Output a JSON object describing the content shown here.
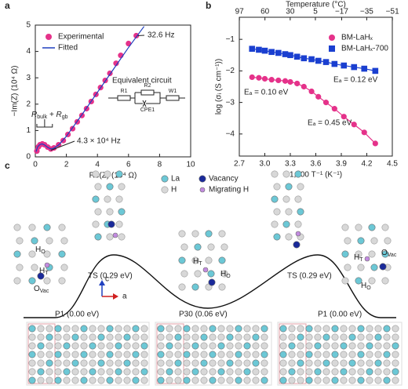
{
  "panel_labels": [
    "a",
    "b",
    "c"
  ],
  "chart_data": [
    {
      "type": "scatter",
      "xlabel": "Re(Z) (10⁴ Ω)",
      "ylabel": "−Im(Z) (10⁴ Ω)",
      "xlim": [
        0,
        10
      ],
      "ylim": [
        0,
        5
      ],
      "xticks": [
        0,
        2,
        4,
        6,
        8,
        10
      ],
      "yticks": [
        0,
        1,
        2,
        3,
        4,
        5
      ],
      "legend": "upper left",
      "series": [
        {
          "name": "Experimental",
          "color": "#e5328a",
          "marker": "circle",
          "x": [
            0.1,
            0.2,
            0.3,
            0.45,
            0.6,
            0.8,
            1.0,
            1.2,
            1.5,
            1.8,
            2.1,
            2.4,
            2.7,
            3.0,
            3.3,
            3.6,
            3.9,
            4.2,
            4.5,
            4.8,
            5.2,
            5.5,
            6.0,
            6.5
          ],
          "values": [
            0.22,
            0.38,
            0.46,
            0.49,
            0.46,
            0.37,
            0.3,
            0.34,
            0.46,
            0.62,
            0.85,
            1.07,
            1.33,
            1.57,
            1.83,
            2.1,
            2.37,
            2.63,
            2.9,
            3.17,
            3.55,
            3.85,
            4.3,
            4.6
          ]
        },
        {
          "name": "Fitted",
          "color": "#1f3fbf",
          "marker": "line",
          "x": [
            0.05,
            0.15,
            0.3,
            0.45,
            0.6,
            0.8,
            1.0,
            1.2,
            1.5,
            2,
            3,
            4,
            5,
            6,
            7
          ],
          "values": [
            0.2,
            0.38,
            0.47,
            0.49,
            0.45,
            0.36,
            0.3,
            0.33,
            0.45,
            0.78,
            1.6,
            2.45,
            3.3,
            4.15,
            4.95
          ]
        }
      ],
      "annotations": [
        "32.6 Hz",
        "4.3 × 10⁴ Hz"
      ],
      "rbulk_rgb": [
        "R",
        "bulk",
        " + R",
        "gb"
      ],
      "circuit": {
        "title": "Equivalent circuit",
        "elements": [
          "R1",
          "R2",
          "CPE1",
          "W1"
        ]
      }
    },
    {
      "type": "scatter",
      "xlabel": "1,000 T⁻¹ (K⁻¹)",
      "ylabel": "log (σᵢ (S cm⁻¹))",
      "x2label": "Temperature (°C)",
      "xlim": [
        2.7,
        4.5
      ],
      "ylim": [
        -4.7,
        -0.3
      ],
      "xticks": [
        2.7,
        {
          "value": 3,
          "label": "3.0"
        },
        3.3,
        3.6,
        3.9,
        4.2,
        4.5
      ],
      "yticks": [
        {
          "value": -1,
          "label": "−1"
        },
        {
          "value": -2,
          "label": "−2"
        },
        {
          "value": -3,
          "label": "−3"
        },
        {
          "value": -4,
          "label": "−4"
        }
      ],
      "x2ticks": [
        97,
        60,
        30,
        5,
        {
          "value": -17,
          "label": "−17"
        },
        {
          "value": -35,
          "label": "−35"
        },
        {
          "value": -51,
          "label": "−51"
        }
      ],
      "legend": "upper right",
      "series": [
        {
          "name": "BM-LaHₓ",
          "color": "#e5328a",
          "marker": "circle",
          "x": [
            2.85,
            2.93,
            3.0,
            3.08,
            3.16,
            3.24,
            3.3,
            3.38,
            3.46,
            3.55,
            3.63,
            3.72,
            3.82,
            3.93,
            4.05,
            4.17,
            4.3
          ],
          "values": [
            -2.2,
            -2.22,
            -2.25,
            -2.28,
            -2.3,
            -2.32,
            -2.35,
            -2.4,
            -2.5,
            -2.65,
            -2.82,
            -3.0,
            -3.2,
            -3.45,
            -3.7,
            -3.95,
            -4.3
          ]
        },
        {
          "name": "BM-LaHₓ-700",
          "color": "#1a3fd0",
          "marker": "square",
          "x": [
            2.85,
            2.93,
            3.0,
            3.08,
            3.16,
            3.24,
            3.3,
            3.38,
            3.46,
            3.55,
            3.63,
            3.72,
            3.82,
            3.93,
            4.05,
            4.17,
            4.3
          ],
          "values": [
            -1.3,
            -1.33,
            -1.36,
            -1.4,
            -1.43,
            -1.47,
            -1.5,
            -1.55,
            -1.6,
            -1.63,
            -1.68,
            -1.72,
            -1.78,
            -1.83,
            -1.88,
            -1.93,
            -2.0
          ]
        }
      ],
      "annotations": [
        "Eₐ = 0.12 eV",
        "Eₐ = 0.10 eV",
        "Eₐ = 0.45 eV"
      ]
    }
  ],
  "diagram": {
    "legend": [
      "La",
      "H",
      "Vacancy",
      "Migrating H"
    ],
    "states": [
      "P1 (0.00 eV)",
      "TS (0.29 eV)",
      "P30 (0.06 eV)",
      "TS (0.29 eV)",
      "P1 (0.00 eV)"
    ],
    "axes": [
      "c",
      "a"
    ],
    "site_labels": [
      {
        "base": "H",
        "sub": "O"
      },
      {
        "base": "H",
        "sub": "T"
      },
      {
        "base": "O",
        "sub": "Vac"
      },
      {
        "base": "H",
        "sub": "T"
      },
      {
        "base": "H",
        "sub": "O"
      },
      {
        "base": "H",
        "sub": "T"
      },
      {
        "base": "O",
        "sub": "Vac"
      },
      {
        "base": "H",
        "sub": "O"
      }
    ]
  }
}
